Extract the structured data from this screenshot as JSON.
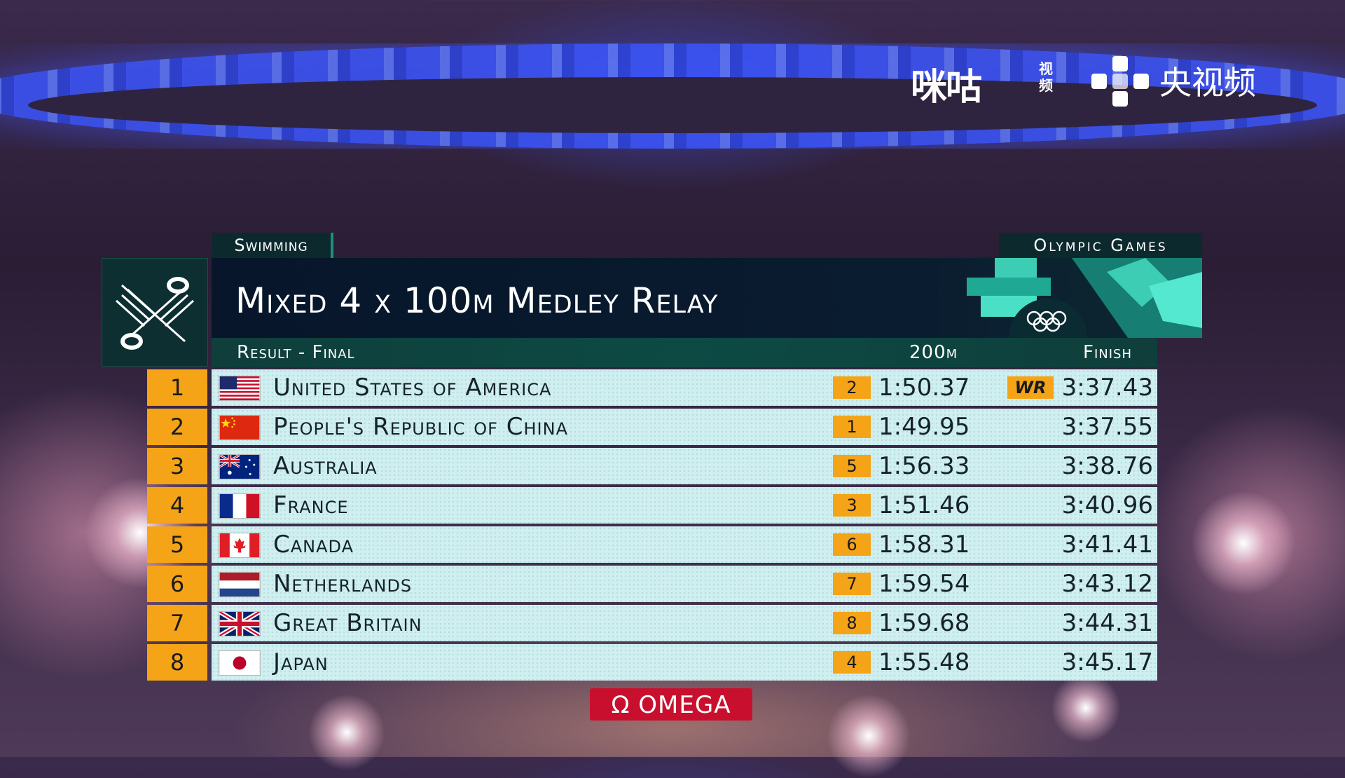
{
  "broadcasters": {
    "migu": "咪咕",
    "migu_sub": "视频",
    "cctv": "央视频"
  },
  "header": {
    "sport": "Swimming",
    "games": "Olympic Games",
    "event_title": "Mixed 4 x 100m Medley Relay",
    "result_label": "Result - Final",
    "split_label": "200m",
    "finish_label": "Finish"
  },
  "results": [
    {
      "rank": "1",
      "country": "United States of America",
      "flag": "usa",
      "split_rank": "2",
      "split_time": "1:50.37",
      "record": "WR",
      "finish": "3:37.43"
    },
    {
      "rank": "2",
      "country": "People's Republic of China",
      "flag": "chn",
      "split_rank": "1",
      "split_time": "1:49.95",
      "record": "",
      "finish": "3:37.55"
    },
    {
      "rank": "3",
      "country": "Australia",
      "flag": "aus",
      "split_rank": "5",
      "split_time": "1:56.33",
      "record": "",
      "finish": "3:38.76"
    },
    {
      "rank": "4",
      "country": "France",
      "flag": "fra",
      "split_rank": "3",
      "split_time": "1:51.46",
      "record": "",
      "finish": "3:40.96"
    },
    {
      "rank": "5",
      "country": "Canada",
      "flag": "can",
      "split_rank": "6",
      "split_time": "1:58.31",
      "record": "",
      "finish": "3:41.41"
    },
    {
      "rank": "6",
      "country": "Netherlands",
      "flag": "ned",
      "split_rank": "7",
      "split_time": "1:59.54",
      "record": "",
      "finish": "3:43.12"
    },
    {
      "rank": "7",
      "country": "Great Britain",
      "flag": "gbr",
      "split_rank": "8",
      "split_time": "1:59.68",
      "record": "",
      "finish": "3:44.31"
    },
    {
      "rank": "8",
      "country": "Japan",
      "flag": "jpn",
      "split_rank": "4",
      "split_time": "1:55.48",
      "record": "",
      "finish": "3:45.17"
    }
  ],
  "sponsor": {
    "symbol": "Ω",
    "name": "OMEGA"
  },
  "colors": {
    "rank_accent": "#f5a417",
    "row_background": "#cfeff0",
    "title_background": "#07162a",
    "subhead_background": "#0d4a44",
    "sponsor_red": "#c8102e"
  }
}
